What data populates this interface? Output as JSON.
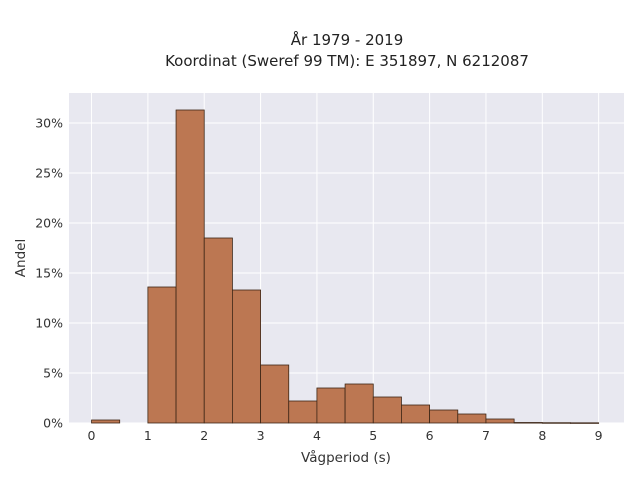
{
  "chart_data": {
    "type": "bar",
    "title_line1": "År 1979 - 2019",
    "title_line2": "Koordinat (Sweref 99 TM): E 351897, N 6212087",
    "xlabel": "Vågperiod (s)",
    "ylabel": "Andel",
    "bin_width": 0.5,
    "bins": [
      {
        "x0": 0.0,
        "value": 0.3
      },
      {
        "x0": 0.5,
        "value": 0.0
      },
      {
        "x0": 1.0,
        "value": 13.6
      },
      {
        "x0": 1.5,
        "value": 31.3
      },
      {
        "x0": 2.0,
        "value": 18.5
      },
      {
        "x0": 2.5,
        "value": 13.3
      },
      {
        "x0": 3.0,
        "value": 5.8
      },
      {
        "x0": 3.5,
        "value": 2.2
      },
      {
        "x0": 4.0,
        "value": 3.5
      },
      {
        "x0": 4.5,
        "value": 3.9
      },
      {
        "x0": 5.0,
        "value": 2.6
      },
      {
        "x0": 5.5,
        "value": 1.8
      },
      {
        "x0": 6.0,
        "value": 1.3
      },
      {
        "x0": 6.5,
        "value": 0.9
      },
      {
        "x0": 7.0,
        "value": 0.4
      },
      {
        "x0": 7.5,
        "value": 0.05
      },
      {
        "x0": 8.0,
        "value": 0.03
      },
      {
        "x0": 8.5,
        "value": 0.02
      }
    ],
    "xlim": [
      -0.4,
      9.45
    ],
    "ylim": [
      0,
      33
    ],
    "x_ticks": [
      0,
      1,
      2,
      3,
      4,
      5,
      6,
      7,
      8,
      9
    ],
    "x_tick_labels": [
      "0",
      "1",
      "2",
      "3",
      "4",
      "5",
      "6",
      "7",
      "8",
      "9"
    ],
    "y_ticks": [
      0,
      5,
      10,
      15,
      20,
      25,
      30
    ],
    "y_tick_labels": [
      "0%",
      "5%",
      "10%",
      "15%",
      "20%",
      "25%",
      "30%"
    ],
    "grid": true,
    "colors": {
      "bar_fill": "#bc7752",
      "bar_stroke": "#3d2616",
      "plot_bg": "#e8e8f0",
      "grid": "#ffffff"
    }
  }
}
